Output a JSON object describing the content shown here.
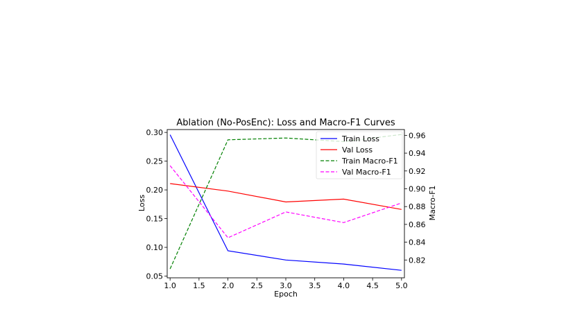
{
  "chart_data": {
    "type": "line",
    "title": "Ablation (No-PosEnc): Loss and Macro-F1 Curves",
    "xlabel": "Epoch",
    "ylabel_left": "Loss",
    "ylabel_right": "Macro-F1",
    "x": [
      1,
      2,
      3,
      4,
      5
    ],
    "xlim": [
      0.95,
      5.05
    ],
    "ylim_left": [
      0.047,
      0.305
    ],
    "ylim_right": [
      0.8,
      0.9665
    ],
    "x_ticks": [
      1.0,
      1.5,
      2.0,
      2.5,
      3.0,
      3.5,
      4.0,
      4.5,
      5.0
    ],
    "x_tick_labels": [
      "1.0",
      "1.5",
      "2.0",
      "2.5",
      "3.0",
      "3.5",
      "4.0",
      "4.5",
      "5.0"
    ],
    "y_left_ticks": [
      0.05,
      0.1,
      0.15,
      0.2,
      0.25,
      0.3
    ],
    "y_left_tick_labels": [
      "0.05",
      "0.10",
      "0.15",
      "0.20",
      "0.25",
      "0.30"
    ],
    "y_right_ticks": [
      0.82,
      0.84,
      0.86,
      0.88,
      0.9,
      0.92,
      0.94,
      0.96
    ],
    "y_right_tick_labels": [
      "0.82",
      "0.84",
      "0.86",
      "0.88",
      "0.90",
      "0.92",
      "0.94",
      "0.96"
    ],
    "grid": false,
    "legend_position": "top-right",
    "series": [
      {
        "name": "Train Loss",
        "axis": "left",
        "color": "#0000ff",
        "dash": "solid",
        "values": [
          0.296,
          0.094,
          0.078,
          0.071,
          0.06
        ]
      },
      {
        "name": "Val Loss",
        "axis": "left",
        "color": "#ff0000",
        "dash": "solid",
        "values": [
          0.211,
          0.198,
          0.179,
          0.184,
          0.166
        ]
      },
      {
        "name": "Train Macro-F1",
        "axis": "right",
        "color": "#008000",
        "dash": "dashed",
        "values": [
          0.81,
          0.955,
          0.957,
          0.953,
          0.961
        ]
      },
      {
        "name": "Val Macro-F1",
        "axis": "right",
        "color": "#ff00ff",
        "dash": "dashed",
        "values": [
          0.926,
          0.845,
          0.874,
          0.862,
          0.884
        ]
      }
    ]
  }
}
